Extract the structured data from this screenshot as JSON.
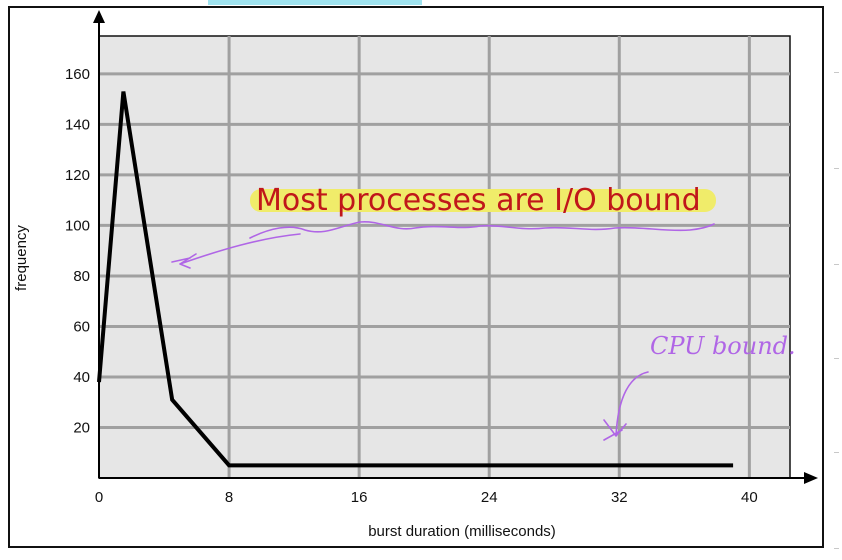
{
  "chart_data": {
    "type": "line",
    "x": [
      0,
      1.5,
      4.5,
      8,
      16,
      24,
      32,
      39
    ],
    "series": [
      {
        "values": [
          38,
          153,
          31,
          5,
          5,
          5,
          5,
          5
        ]
      }
    ],
    "xticks": [
      0,
      8,
      16,
      24,
      32,
      40
    ],
    "yticks": [
      20,
      40,
      60,
      80,
      100,
      120,
      140,
      160
    ],
    "xlabel": "burst duration (milliseconds)",
    "ylabel": "frequency",
    "xlim": [
      0,
      42.5
    ],
    "ylim": [
      0,
      175
    ],
    "grid": true,
    "plot_background": "#e6e6e6",
    "grid_color": "#a0a0a0",
    "line_color": "#000000"
  },
  "annotations": {
    "highlight_text": "Most processes are I/O bound",
    "highlight_text_color": "#c0171a",
    "highlight_color": "#f0ec6a",
    "handwritten_text": "CPU bound.",
    "ink_color": "#b066e6"
  }
}
